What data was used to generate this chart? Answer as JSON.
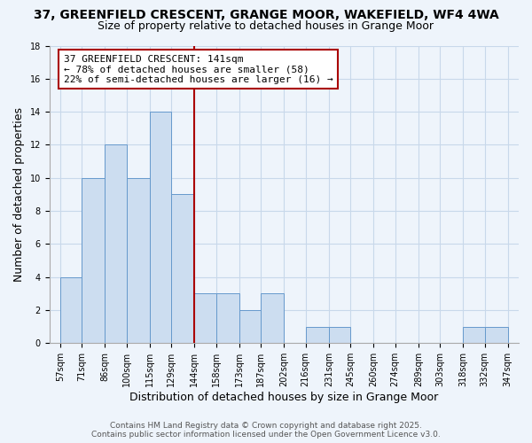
{
  "title": "37, GREENFIELD CRESCENT, GRANGE MOOR, WAKEFIELD, WF4 4WA",
  "subtitle": "Size of property relative to detached houses in Grange Moor",
  "xlabel": "Distribution of detached houses by size in Grange Moor",
  "ylabel": "Number of detached properties",
  "bins": [
    57,
    71,
    86,
    100,
    115,
    129,
    144,
    158,
    173,
    187,
    202,
    216,
    231,
    245,
    260,
    274,
    289,
    303,
    318,
    332,
    347
  ],
  "counts": [
    4,
    10,
    12,
    10,
    14,
    9,
    3,
    3,
    2,
    3,
    0,
    1,
    1,
    0,
    0,
    0,
    0,
    0,
    1,
    1
  ],
  "bar_facecolor": "#ccddf0",
  "bar_edgecolor": "#6699cc",
  "grid_color": "#c8d8ea",
  "background_color": "#eef4fb",
  "vline_x": 144,
  "vline_color": "#aa0000",
  "annotation_box_text": "37 GREENFIELD CRESCENT: 141sqm\n← 78% of detached houses are smaller (58)\n22% of semi-detached houses are larger (16) →",
  "ylim": [
    0,
    18
  ],
  "yticks": [
    0,
    2,
    4,
    6,
    8,
    10,
    12,
    14,
    16,
    18
  ],
  "tick_labels": [
    "57sqm",
    "71sqm",
    "86sqm",
    "100sqm",
    "115sqm",
    "129sqm",
    "144sqm",
    "158sqm",
    "173sqm",
    "187sqm",
    "202sqm",
    "216sqm",
    "231sqm",
    "245sqm",
    "260sqm",
    "274sqm",
    "289sqm",
    "303sqm",
    "318sqm",
    "332sqm",
    "347sqm"
  ],
  "footer_text": "Contains HM Land Registry data © Crown copyright and database right 2025.\nContains public sector information licensed under the Open Government Licence v3.0.",
  "title_fontsize": 10,
  "subtitle_fontsize": 9,
  "axis_label_fontsize": 9,
  "tick_fontsize": 7,
  "annotation_fontsize": 8,
  "footer_fontsize": 6.5
}
